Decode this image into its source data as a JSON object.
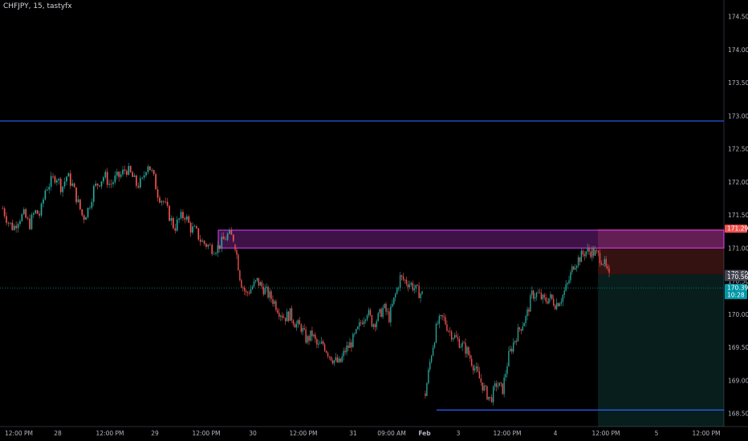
{
  "header": {
    "symbol_info": "CHFJPY, 15, tastyfx"
  },
  "chart_data": {
    "type": "candlestick",
    "title": "CHFJPY, 15, tastyfx",
    "ylim": [
      168.3,
      174.75
    ],
    "y_ticks": [
      "174.500",
      "174.000",
      "173.500",
      "173.000",
      "172.500",
      "172.000",
      "171.500",
      "171.000",
      "170.500",
      "170.000",
      "169.500",
      "169.000",
      "168.500"
    ],
    "x_ticks": [
      "12:00 PM",
      "28",
      "12:00 PM",
      "29",
      "12:00 PM",
      "30",
      "12:00 PM",
      "31",
      "09:00 AM",
      "Feb",
      "3",
      "12:00 PM",
      "4",
      "12:00 PM",
      "5",
      "12:00 PM"
    ],
    "x_tick_bold": "Feb",
    "colors": {
      "up": "#26a69a",
      "down": "#ef5350",
      "line": "#2962ff",
      "zone": "#e040fb"
    },
    "series": [
      {
        "segment": 1,
        "values": [
          171.6,
          171.4,
          171.3,
          171.45,
          171.5,
          171.35,
          171.55,
          171.5,
          171.9,
          172.0,
          172.1,
          171.9,
          172.1,
          171.95,
          171.7,
          171.45,
          171.6,
          171.9,
          172.0,
          172.1,
          171.95,
          172.05,
          172.1,
          172.2,
          172.1,
          171.95,
          172.0,
          172.3,
          172.1,
          171.8,
          171.7,
          171.5,
          171.3,
          171.45,
          171.5,
          171.3,
          171.25,
          171.1,
          171.05,
          171.0,
          171.0,
          171.1,
          171.2,
          171.15
        ]
      },
      {
        "segment": 2,
        "values": [
          171.05,
          170.5,
          170.3,
          170.4,
          170.5,
          170.4,
          170.3,
          170.2,
          170.05,
          169.95,
          170.0,
          169.85,
          169.8,
          169.6,
          169.7,
          169.5,
          169.55,
          169.4,
          169.3,
          169.25,
          169.45,
          169.55,
          169.7,
          169.9,
          170.05,
          169.85,
          169.95,
          170.1,
          169.95,
          170.25,
          170.55,
          170.5,
          170.45,
          170.35,
          170.3
        ]
      },
      {
        "segment": 3,
        "values": [
          168.8,
          169.4,
          169.85,
          169.95,
          169.75,
          169.65,
          169.55,
          169.45,
          169.25,
          169.05,
          168.85,
          168.7,
          168.95,
          168.85,
          169.35,
          169.6,
          169.8,
          169.95,
          170.3,
          170.3,
          170.2,
          170.25,
          170.15,
          170.25,
          170.45,
          170.75,
          170.85,
          170.95,
          170.95,
          170.9,
          170.8,
          170.55
        ]
      }
    ],
    "horizontal_lines": [
      {
        "price": 172.92,
        "x_start": "28",
        "color": "#2962ff"
      },
      {
        "price": 168.55,
        "x_start": "Feb",
        "color": "#2962ff"
      }
    ],
    "zone": {
      "top": 171.27,
      "bottom": 171.0,
      "label_start": "12:00 PM",
      "color": "#e040fb"
    },
    "position": {
      "entry": 170.6,
      "stop": 171.292,
      "target": 168.3
    },
    "price_badges": [
      {
        "value": "171.292",
        "color": "#ef5350"
      },
      {
        "value": "170.608",
        "color": "#434651"
      },
      {
        "value": "170.560",
        "color": "#434651"
      },
      {
        "value": "170.396",
        "sub": "10:28",
        "color": "#0097a7"
      }
    ]
  }
}
